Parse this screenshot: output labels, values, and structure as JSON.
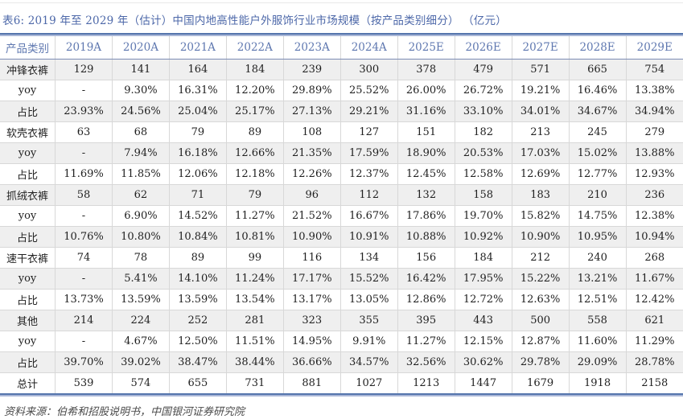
{
  "title": "表6: 2019 年至 2029 年（估计）中国内地高性能户外服饰行业市场规模（按产品类别细分） （亿元）",
  "source": "资料来源：伯希和招股说明书，中国银河证券研究院",
  "table": {
    "columns": [
      "产品类别",
      "2019A",
      "2020A",
      "2021A",
      "2022A",
      "2023A",
      "2024A",
      "2025E",
      "2026E",
      "2027E",
      "2028E",
      "2029E"
    ],
    "rows": [
      {
        "label": "冲锋衣裤",
        "values": [
          "129",
          "141",
          "164",
          "184",
          "239",
          "300",
          "378",
          "479",
          "571",
          "665",
          "754"
        ]
      },
      {
        "label": "yoy",
        "values": [
          "-",
          "9.30%",
          "16.31%",
          "12.20%",
          "29.89%",
          "25.52%",
          "26.00%",
          "26.72%",
          "19.21%",
          "16.46%",
          "13.38%"
        ]
      },
      {
        "label": "占比",
        "values": [
          "23.93%",
          "24.56%",
          "25.04%",
          "25.17%",
          "27.13%",
          "29.21%",
          "31.16%",
          "33.10%",
          "34.01%",
          "34.67%",
          "34.94%"
        ]
      },
      {
        "label": "软壳衣裤",
        "values": [
          "63",
          "68",
          "79",
          "89",
          "108",
          "127",
          "151",
          "182",
          "213",
          "245",
          "279"
        ]
      },
      {
        "label": "yoy",
        "values": [
          "-",
          "7.94%",
          "16.18%",
          "12.66%",
          "21.35%",
          "17.59%",
          "18.90%",
          "20.53%",
          "17.03%",
          "15.02%",
          "13.88%"
        ]
      },
      {
        "label": "占比",
        "values": [
          "11.69%",
          "11.85%",
          "12.06%",
          "12.18%",
          "12.26%",
          "12.37%",
          "12.45%",
          "12.58%",
          "12.69%",
          "12.77%",
          "12.93%"
        ]
      },
      {
        "label": "抓绒衣裤",
        "values": [
          "58",
          "62",
          "71",
          "79",
          "96",
          "112",
          "132",
          "158",
          "183",
          "210",
          "236"
        ]
      },
      {
        "label": "yoy",
        "values": [
          "-",
          "6.90%",
          "14.52%",
          "11.27%",
          "21.52%",
          "16.67%",
          "17.86%",
          "19.70%",
          "15.82%",
          "14.75%",
          "12.38%"
        ]
      },
      {
        "label": "占比",
        "values": [
          "10.76%",
          "10.80%",
          "10.84%",
          "10.81%",
          "10.90%",
          "10.91%",
          "10.88%",
          "10.92%",
          "10.90%",
          "10.95%",
          "10.94%"
        ]
      },
      {
        "label": "速干衣裤",
        "values": [
          "74",
          "78",
          "89",
          "99",
          "116",
          "134",
          "156",
          "184",
          "212",
          "240",
          "268"
        ]
      },
      {
        "label": "yoy",
        "values": [
          "-",
          "5.41%",
          "14.10%",
          "11.24%",
          "17.17%",
          "15.52%",
          "16.42%",
          "17.95%",
          "15.22%",
          "13.21%",
          "11.67%"
        ]
      },
      {
        "label": "占比",
        "values": [
          "13.73%",
          "13.59%",
          "13.59%",
          "13.54%",
          "13.17%",
          "13.05%",
          "12.86%",
          "12.72%",
          "12.63%",
          "12.51%",
          "12.42%"
        ]
      },
      {
        "label": "其他",
        "values": [
          "214",
          "224",
          "252",
          "281",
          "323",
          "355",
          "395",
          "443",
          "500",
          "558",
          "621"
        ]
      },
      {
        "label": "yoy",
        "values": [
          "-",
          "4.67%",
          "12.50%",
          "11.51%",
          "14.95%",
          "9.91%",
          "11.27%",
          "12.15%",
          "12.87%",
          "11.60%",
          "11.29%"
        ]
      },
      {
        "label": "占比",
        "values": [
          "39.70%",
          "39.02%",
          "38.47%",
          "38.44%",
          "36.66%",
          "34.57%",
          "32.56%",
          "30.62%",
          "29.78%",
          "29.09%",
          "28.78%"
        ]
      },
      {
        "label": "总计",
        "values": [
          "539",
          "574",
          "655",
          "731",
          "881",
          "1027",
          "1213",
          "1447",
          "1679",
          "1918",
          "2158"
        ]
      }
    ]
  },
  "colors": {
    "title_blue": "#4d68a9",
    "header_text_blue": "#5f78b0",
    "rule_dark_blue": "#5575ad",
    "rule_light_blue": "#a9b7d7",
    "header_bottom_border": "#7c8bb4",
    "alt_row_bg": "#efefef",
    "cell_border": "#d8d8d8",
    "body_text": "#1f1f1f",
    "source_text": "#4a4a4a"
  }
}
